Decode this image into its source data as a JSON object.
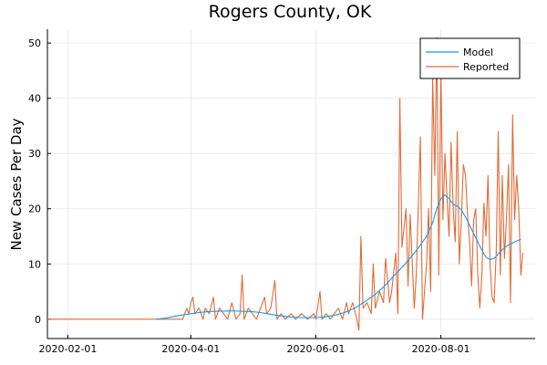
{
  "chart_data": {
    "type": "line",
    "title": "Rogers County, OK",
    "xlabel": "",
    "ylabel": "New Cases Per Day",
    "x_axis_type": "date",
    "xlim": [
      "2020-01-22",
      "2020-09-16"
    ],
    "ylim": [
      -3.5,
      52.5
    ],
    "x_ticks": [
      "2020-02-01",
      "2020-04-01",
      "2020-06-01",
      "2020-08-01"
    ],
    "y_ticks": [
      0,
      10,
      20,
      30,
      40,
      50
    ],
    "grid": true,
    "legend_position": "top-right",
    "colors": {
      "Model": "#0f9bf0",
      "Reported": "#e26a38"
    },
    "series": [
      {
        "name": "Model",
        "points": [
          [
            "2020-03-15",
            0.0
          ],
          [
            "2020-03-20",
            0.2
          ],
          [
            "2020-03-25",
            0.6
          ],
          [
            "2020-03-30",
            0.9
          ],
          [
            "2020-04-05",
            1.2
          ],
          [
            "2020-04-10",
            1.4
          ],
          [
            "2020-04-20",
            1.5
          ],
          [
            "2020-04-30",
            1.4
          ],
          [
            "2020-05-05",
            1.2
          ],
          [
            "2020-05-10",
            0.9
          ],
          [
            "2020-05-15",
            0.6
          ],
          [
            "2020-05-20",
            0.4
          ],
          [
            "2020-05-25",
            0.3
          ],
          [
            "2020-06-01",
            0.3
          ],
          [
            "2020-06-05",
            0.4
          ],
          [
            "2020-06-10",
            0.7
          ],
          [
            "2020-06-15",
            1.2
          ],
          [
            "2020-06-20",
            2.0
          ],
          [
            "2020-06-25",
            3.2
          ],
          [
            "2020-06-30",
            4.5
          ],
          [
            "2020-07-05",
            6.2
          ],
          [
            "2020-07-10",
            8.2
          ],
          [
            "2020-07-15",
            10.2
          ],
          [
            "2020-07-20",
            12.4
          ],
          [
            "2020-07-25",
            15.0
          ],
          [
            "2020-07-28",
            17.5
          ],
          [
            "2020-07-30",
            20.0
          ],
          [
            "2020-08-01",
            21.8
          ],
          [
            "2020-08-03",
            22.5
          ],
          [
            "2020-08-05",
            21.8
          ],
          [
            "2020-08-07",
            20.8
          ],
          [
            "2020-08-09",
            20.5
          ],
          [
            "2020-08-11",
            19.8
          ],
          [
            "2020-08-13",
            18.5
          ],
          [
            "2020-08-15",
            17.0
          ],
          [
            "2020-08-17",
            15.5
          ],
          [
            "2020-08-19",
            14.0
          ],
          [
            "2020-08-21",
            12.5
          ],
          [
            "2020-08-23",
            11.2
          ],
          [
            "2020-08-25",
            10.8
          ],
          [
            "2020-08-27",
            11.0
          ],
          [
            "2020-08-29",
            11.8
          ],
          [
            "2020-08-31",
            12.6
          ],
          [
            "2020-09-02",
            13.2
          ],
          [
            "2020-09-04",
            13.6
          ],
          [
            "2020-09-06",
            14.0
          ],
          [
            "2020-09-08",
            14.3
          ],
          [
            "2020-09-09",
            14.5
          ]
        ]
      },
      {
        "name": "Reported",
        "points": [
          [
            "2020-01-22",
            0
          ],
          [
            "2020-03-28",
            0
          ],
          [
            "2020-03-30",
            2
          ],
          [
            "2020-03-31",
            1
          ],
          [
            "2020-04-01",
            3
          ],
          [
            "2020-04-02",
            4
          ],
          [
            "2020-04-03",
            1
          ],
          [
            "2020-04-05",
            2
          ],
          [
            "2020-04-07",
            0
          ],
          [
            "2020-04-08",
            2
          ],
          [
            "2020-04-10",
            1
          ],
          [
            "2020-04-12",
            4
          ],
          [
            "2020-04-13",
            0
          ],
          [
            "2020-04-15",
            2
          ],
          [
            "2020-04-17",
            1
          ],
          [
            "2020-04-19",
            0
          ],
          [
            "2020-04-21",
            3
          ],
          [
            "2020-04-23",
            0
          ],
          [
            "2020-04-25",
            1
          ],
          [
            "2020-04-26",
            8
          ],
          [
            "2020-04-27",
            0
          ],
          [
            "2020-04-29",
            2
          ],
          [
            "2020-05-01",
            1
          ],
          [
            "2020-05-03",
            0
          ],
          [
            "2020-05-05",
            2
          ],
          [
            "2020-05-07",
            4
          ],
          [
            "2020-05-08",
            1
          ],
          [
            "2020-05-10",
            2
          ],
          [
            "2020-05-12",
            7
          ],
          [
            "2020-05-13",
            0
          ],
          [
            "2020-05-15",
            1
          ],
          [
            "2020-05-17",
            0
          ],
          [
            "2020-05-20",
            1
          ],
          [
            "2020-05-22",
            0
          ],
          [
            "2020-05-25",
            1
          ],
          [
            "2020-05-28",
            0
          ],
          [
            "2020-05-31",
            1
          ],
          [
            "2020-06-01",
            0
          ],
          [
            "2020-06-03",
            5
          ],
          [
            "2020-06-04",
            0
          ],
          [
            "2020-06-06",
            1
          ],
          [
            "2020-06-08",
            0
          ],
          [
            "2020-06-10",
            1
          ],
          [
            "2020-06-12",
            2
          ],
          [
            "2020-06-14",
            0
          ],
          [
            "2020-06-16",
            3
          ],
          [
            "2020-06-17",
            1
          ],
          [
            "2020-06-19",
            3
          ],
          [
            "2020-06-21",
            0
          ],
          [
            "2020-06-22",
            -2
          ],
          [
            "2020-06-23",
            15
          ],
          [
            "2020-06-24",
            2
          ],
          [
            "2020-06-26",
            3
          ],
          [
            "2020-06-28",
            1
          ],
          [
            "2020-06-29",
            10
          ],
          [
            "2020-06-30",
            2
          ],
          [
            "2020-07-02",
            5
          ],
          [
            "2020-07-04",
            3
          ],
          [
            "2020-07-05",
            11
          ],
          [
            "2020-07-07",
            3
          ],
          [
            "2020-07-08",
            5
          ],
          [
            "2020-07-10",
            12
          ],
          [
            "2020-07-11",
            1
          ],
          [
            "2020-07-12",
            40
          ],
          [
            "2020-07-13",
            13
          ],
          [
            "2020-07-15",
            20
          ],
          [
            "2020-07-16",
            6
          ],
          [
            "2020-07-17",
            19
          ],
          [
            "2020-07-19",
            2
          ],
          [
            "2020-07-20",
            8
          ],
          [
            "2020-07-22",
            33
          ],
          [
            "2020-07-23",
            0
          ],
          [
            "2020-07-25",
            10
          ],
          [
            "2020-07-26",
            20
          ],
          [
            "2020-07-27",
            5
          ],
          [
            "2020-07-28",
            44
          ],
          [
            "2020-07-29",
            26
          ],
          [
            "2020-07-30",
            51
          ],
          [
            "2020-07-31",
            8
          ],
          [
            "2020-08-01",
            46
          ],
          [
            "2020-08-02",
            18
          ],
          [
            "2020-08-03",
            30
          ],
          [
            "2020-08-04",
            22
          ],
          [
            "2020-08-05",
            15
          ],
          [
            "2020-08-06",
            32
          ],
          [
            "2020-08-07",
            20
          ],
          [
            "2020-08-08",
            14
          ],
          [
            "2020-08-09",
            34
          ],
          [
            "2020-08-10",
            10
          ],
          [
            "2020-08-11",
            18
          ],
          [
            "2020-08-12",
            28
          ],
          [
            "2020-08-13",
            26
          ],
          [
            "2020-08-14",
            19
          ],
          [
            "2020-08-15",
            14
          ],
          [
            "2020-08-16",
            6
          ],
          [
            "2020-08-17",
            18
          ],
          [
            "2020-08-18",
            20
          ],
          [
            "2020-08-19",
            8
          ],
          [
            "2020-08-20",
            2
          ],
          [
            "2020-08-21",
            8
          ],
          [
            "2020-08-22",
            21
          ],
          [
            "2020-08-23",
            15
          ],
          [
            "2020-08-24",
            26
          ],
          [
            "2020-08-25",
            10
          ],
          [
            "2020-08-26",
            4
          ],
          [
            "2020-08-27",
            3
          ],
          [
            "2020-08-28",
            12
          ],
          [
            "2020-08-29",
            34
          ],
          [
            "2020-08-30",
            8
          ],
          [
            "2020-08-31",
            26
          ],
          [
            "2020-09-01",
            11
          ],
          [
            "2020-09-02",
            18
          ],
          [
            "2020-09-03",
            28
          ],
          [
            "2020-09-04",
            3
          ],
          [
            "2020-09-05",
            37
          ],
          [
            "2020-09-06",
            18
          ],
          [
            "2020-09-07",
            26
          ],
          [
            "2020-09-08",
            20
          ],
          [
            "2020-09-09",
            8
          ],
          [
            "2020-09-10",
            12
          ]
        ]
      }
    ]
  }
}
